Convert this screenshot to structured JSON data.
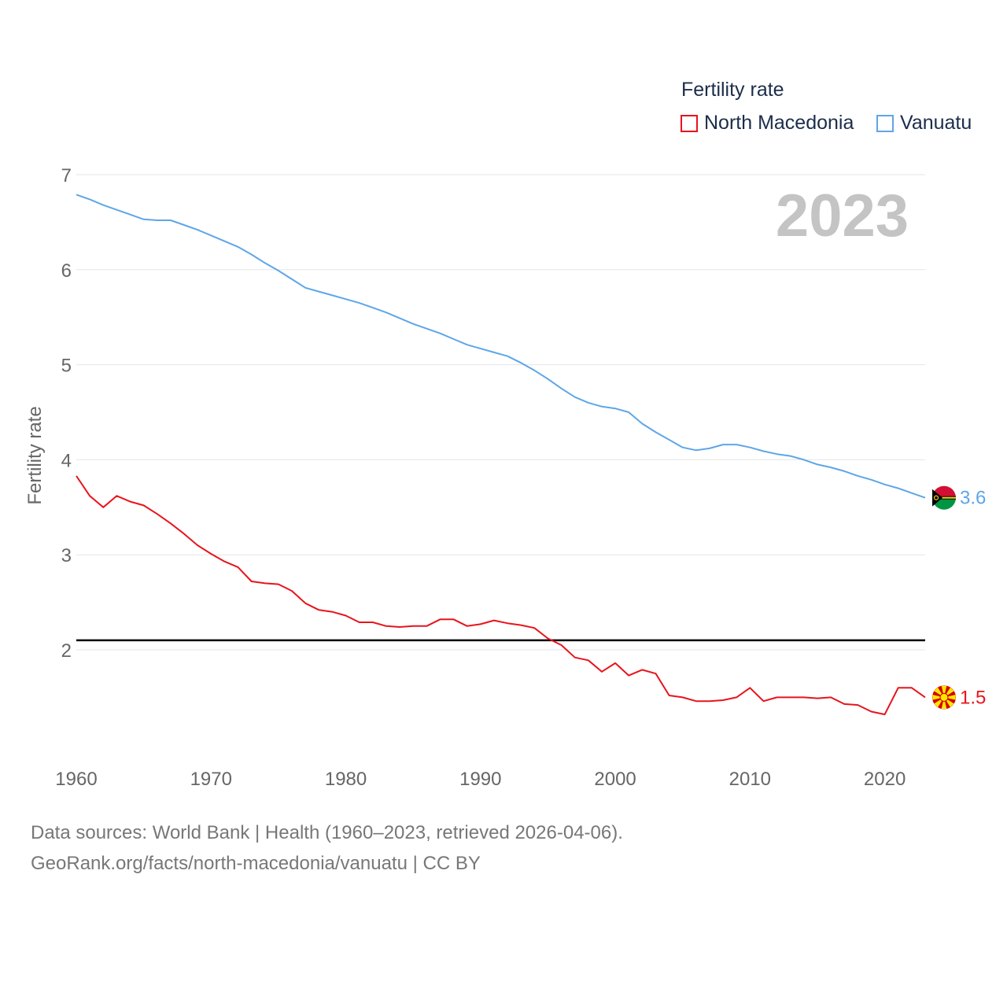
{
  "chart_data": {
    "type": "line",
    "title": "Fertility rate",
    "ylabel": "Fertility rate",
    "xlabel": "",
    "year_label": "2023",
    "xlim": [
      1960,
      2023
    ],
    "ylim": [
      1.15,
      7
    ],
    "y_ticks": [
      2,
      3,
      4,
      5,
      6,
      7
    ],
    "x_ticks": [
      1960,
      1970,
      1980,
      1990,
      2000,
      2010,
      2020
    ],
    "reference_line": 2.1,
    "x": [
      1960,
      1961,
      1962,
      1963,
      1964,
      1965,
      1966,
      1967,
      1968,
      1969,
      1970,
      1971,
      1972,
      1973,
      1974,
      1975,
      1976,
      1977,
      1978,
      1979,
      1980,
      1981,
      1982,
      1983,
      1984,
      1985,
      1986,
      1987,
      1988,
      1989,
      1990,
      1991,
      1992,
      1993,
      1994,
      1995,
      1996,
      1997,
      1998,
      1999,
      2000,
      2001,
      2002,
      2003,
      2004,
      2005,
      2006,
      2007,
      2008,
      2009,
      2010,
      2011,
      2012,
      2013,
      2014,
      2015,
      2016,
      2017,
      2018,
      2019,
      2020,
      2021,
      2022,
      2023
    ],
    "series": [
      {
        "name": "North Macedonia",
        "color": "#e8141c",
        "end_label": "1.5",
        "flag": "north-macedonia-flag-icon",
        "values": [
          3.83,
          3.62,
          3.5,
          3.62,
          3.56,
          3.52,
          3.43,
          3.33,
          3.22,
          3.1,
          3.01,
          2.93,
          2.87,
          2.72,
          2.7,
          2.69,
          2.62,
          2.49,
          2.42,
          2.4,
          2.36,
          2.29,
          2.29,
          2.25,
          2.24,
          2.25,
          2.25,
          2.32,
          2.32,
          2.25,
          2.27,
          2.31,
          2.28,
          2.26,
          2.23,
          2.12,
          2.05,
          1.92,
          1.89,
          1.77,
          1.86,
          1.73,
          1.79,
          1.75,
          1.52,
          1.5,
          1.46,
          1.46,
          1.47,
          1.5,
          1.6,
          1.46,
          1.5,
          1.5,
          1.5,
          1.49,
          1.5,
          1.43,
          1.42,
          1.35,
          1.32,
          1.6,
          1.6,
          1.5
        ]
      },
      {
        "name": "Vanuatu",
        "color": "#5ea6e8",
        "end_label": "3.6",
        "flag": "vanuatu-flag-icon",
        "values": [
          6.79,
          6.74,
          6.68,
          6.63,
          6.58,
          6.53,
          6.52,
          6.52,
          6.47,
          6.42,
          6.36,
          6.3,
          6.24,
          6.16,
          6.07,
          5.99,
          5.9,
          5.81,
          5.77,
          5.73,
          5.69,
          5.65,
          5.6,
          5.55,
          5.49,
          5.43,
          5.38,
          5.33,
          5.27,
          5.21,
          5.17,
          5.13,
          5.09,
          5.02,
          4.94,
          4.85,
          4.75,
          4.66,
          4.6,
          4.56,
          4.54,
          4.5,
          4.38,
          4.29,
          4.21,
          4.13,
          4.1,
          4.12,
          4.16,
          4.16,
          4.13,
          4.09,
          4.06,
          4.04,
          4.0,
          3.95,
          3.92,
          3.88,
          3.83,
          3.79,
          3.74,
          3.7,
          3.65,
          3.6
        ]
      }
    ]
  },
  "legend": {
    "title": "Fertility rate",
    "items": [
      "North Macedonia",
      "Vanuatu"
    ]
  },
  "footer": {
    "line1": "Data sources: World Bank | Health (1960–2023, retrieved 2026-04-06).",
    "line2": "GeoRank.org/facts/north-macedonia/vanuatu | CC BY"
  }
}
